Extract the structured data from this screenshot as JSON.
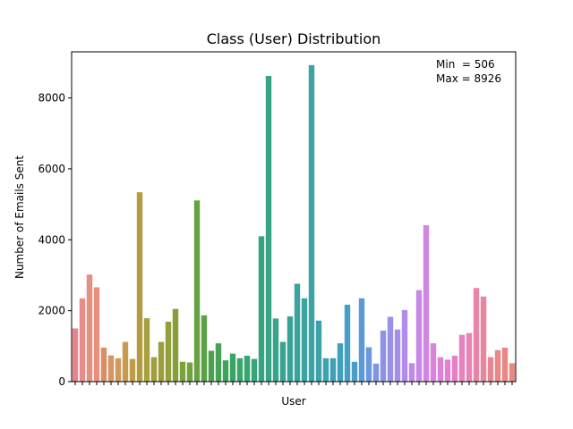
{
  "chart_data": {
    "type": "bar",
    "title": "Class (User) Distribution",
    "xlabel": "User",
    "ylabel": "Number of Emails Sent",
    "ylim": [
      0,
      9300
    ],
    "yticks": [
      0,
      2000,
      4000,
      6000,
      8000
    ],
    "annotations": [
      "Min  = 506",
      "Max = 8926"
    ],
    "grid": false,
    "values": [
      1500,
      2350,
      3020,
      2660,
      960,
      740,
      660,
      1120,
      640,
      5340,
      1790,
      690,
      1120,
      1690,
      2050,
      560,
      540,
      5110,
      1870,
      870,
      1080,
      600,
      790,
      660,
      730,
      640,
      4100,
      8620,
      1780,
      1120,
      1840,
      2760,
      2350,
      8926,
      1720,
      660,
      660,
      1080,
      2170,
      560,
      2350,
      970,
      506,
      1440,
      1830,
      1470,
      2020,
      520,
      2580,
      4410,
      1080,
      690,
      620,
      730,
      1320,
      1370,
      2640,
      2400,
      690,
      890,
      960,
      520
    ],
    "colors": [
      "#e8838a",
      "#e88b8b",
      "#e48f7f",
      "#e89080",
      "#d89063",
      "#d59565",
      "#cf9a5c",
      "#c79a50",
      "#bd9e47",
      "#b39c3f",
      "#a8a040",
      "#a19e3f",
      "#9a9e3d",
      "#929f3b",
      "#879f3a",
      "#7ca23b",
      "#72a23e",
      "#67a142",
      "#5aa148",
      "#4fa04e",
      "#46a254",
      "#3da45c",
      "#3aa463",
      "#38a56b",
      "#37a572",
      "#37a479",
      "#37a47f",
      "#37a485",
      "#38a48b",
      "#39a491",
      "#3aa396",
      "#3aa39b",
      "#3ba3a0",
      "#3ca3a5",
      "#3da2aa",
      "#3ea2af",
      "#3fa1b5",
      "#41a0bb",
      "#449fc2",
      "#4b9dca",
      "#5b9ad4",
      "#6e98dc",
      "#7d95e3",
      "#8c92e6",
      "#9a90e8",
      "#a58ee8",
      "#b28ce8",
      "#bd8ae8",
      "#c789e6",
      "#d086e2",
      "#d884de",
      "#de82d7",
      "#e281cf",
      "#e480c7",
      "#e682bd",
      "#e883b2",
      "#e984a8",
      "#e9859d",
      "#e98693",
      "#e9878b",
      "#e88886",
      "#e88a82"
    ]
  }
}
